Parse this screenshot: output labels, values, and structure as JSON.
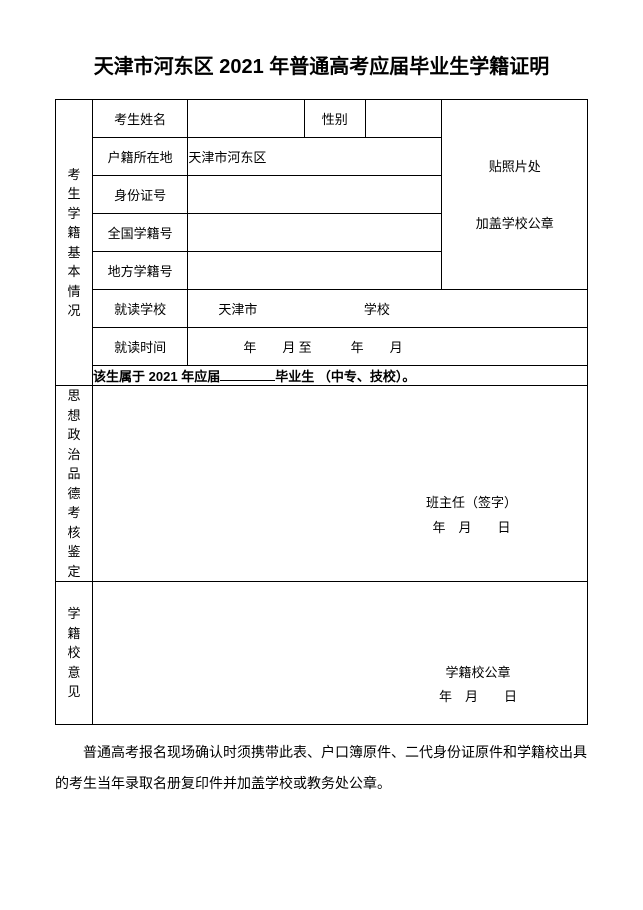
{
  "title": "天津市河东区 2021 年普通高考应届毕业生学籍证明",
  "section_labels": {
    "basic_info": "考生学籍基本情况",
    "moral": "思想政治品德考核鉴定",
    "school_opinion": "学籍校意见"
  },
  "rows": {
    "name_label": "考生姓名",
    "name_value": "",
    "gender_label": "性别",
    "gender_value": "",
    "hukou_label": "户籍所在地",
    "hukou_value": "天津市河东区",
    "id_label": "身份证号",
    "id_value": "",
    "national_id_label": "全国学籍号",
    "national_id_value": "",
    "local_id_label": "地方学籍号",
    "local_id_value": "",
    "school_label": "就读学校",
    "school_prefix": "天津市",
    "school_suffix": "学校",
    "period_label": "就读时间",
    "period_text": "年  月 至   年  月",
    "photo_top": "贴照片处",
    "photo_bottom": "加盖学校公章"
  },
  "statement": {
    "prefix": "该生属于 2021 年应届",
    "suffix": "毕业生 （中专、技校）。"
  },
  "signatures": {
    "teacher_label": "班主任（签字）",
    "teacher_date": "年 月  日",
    "school_seal_label": "学籍校公章",
    "school_seal_date": "年 月  日"
  },
  "footer": "普通高考报名现场确认时须携带此表、户口簿原件、二代身份证原件和学籍校出具的考生当年录取名册复印件并加盖学校或教务处公章。"
}
